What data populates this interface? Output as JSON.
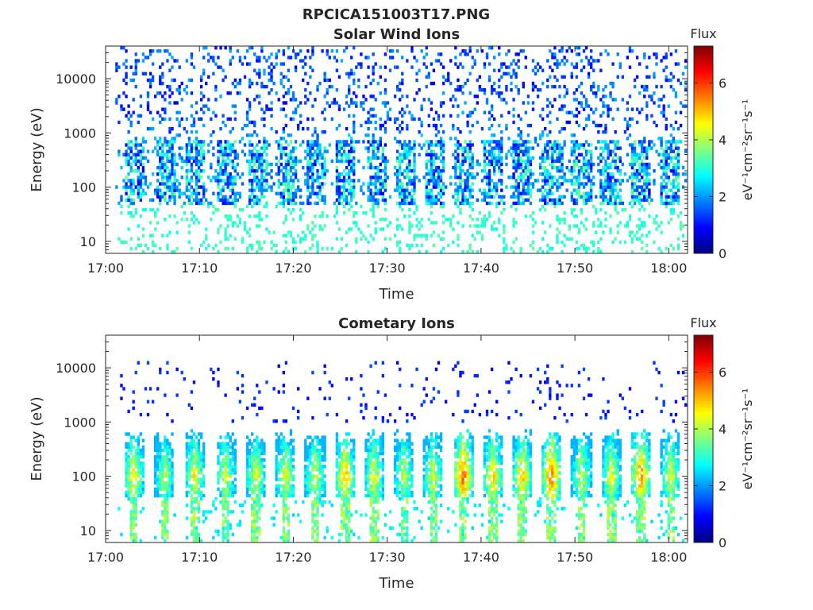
{
  "figure_title": "RPCICA151003T17.PNG",
  "chart_data": [
    {
      "type": "heatmap",
      "title": "Solar Wind Ions",
      "xlabel": "Time",
      "ylabel": "Energy (eV)",
      "xticks": [
        "17:00",
        "17:10",
        "17:20",
        "17:30",
        "17:40",
        "17:50",
        "18:00"
      ],
      "xlim_minutes": [
        0,
        62
      ],
      "yscale": "log",
      "yticks": [
        "10",
        "100",
        "1000",
        "10000"
      ],
      "ylim": [
        6,
        40000
      ],
      "colorbar": {
        "label": "Flux",
        "unit": "eV⁻¹cm⁻²sr⁻¹s⁻¹",
        "ticks": [
          "0",
          "2",
          "4",
          "6"
        ],
        "range": [
          0,
          7.3
        ],
        "colormap": "jet"
      },
      "bursts_center_minutes": [
        3.2,
        6.5,
        9.5,
        13.0,
        16.2,
        19.3,
        22.4,
        25.6,
        28.8,
        31.9,
        35.0,
        38.2,
        41.3,
        44.4,
        47.6,
        50.7,
        53.8,
        57.0,
        60.2
      ],
      "core_energy_eV": [
        50,
        700
      ],
      "core_flux": [
        2.0,
        3.5
      ],
      "background_energy_eV": [
        1000,
        35000
      ],
      "background_flux": [
        0.8,
        2.2
      ]
    },
    {
      "type": "heatmap",
      "title": "Cometary Ions",
      "xlabel": "Time",
      "ylabel": "Energy (eV)",
      "xticks": [
        "17:00",
        "17:10",
        "17:20",
        "17:30",
        "17:40",
        "17:50",
        "18:00"
      ],
      "xlim_minutes": [
        0,
        62
      ],
      "yscale": "log",
      "yticks": [
        "10",
        "100",
        "1000",
        "10000"
      ],
      "ylim": [
        6,
        40000
      ],
      "colorbar": {
        "label": "Flux",
        "unit": "eV⁻¹cm⁻²sr⁻¹s⁻¹",
        "ticks": [
          "0",
          "2",
          "4",
          "6"
        ],
        "range": [
          0,
          7.3
        ],
        "colormap": "jet"
      },
      "bursts_center_minutes": [
        3.0,
        6.3,
        9.5,
        12.8,
        16.0,
        19.2,
        22.3,
        25.5,
        28.6,
        31.8,
        34.9,
        38.1,
        41.3,
        44.4,
        47.5,
        50.7,
        53.9,
        57.0,
        60.2
      ],
      "peak_flux_by_burst": [
        4.8,
        4.2,
        4.7,
        4.3,
        4.5,
        4.6,
        4.4,
        5.2,
        4.6,
        4.3,
        4.5,
        5.8,
        5.0,
        5.1,
        5.7,
        4.4,
        4.6,
        5.6,
        4.5
      ],
      "core_energy_eV": [
        40,
        500
      ],
      "peak_energy_eV": 100,
      "background_energy_eV": [
        1000,
        12000
      ],
      "background_flux": [
        0.8,
        1.5
      ]
    }
  ]
}
